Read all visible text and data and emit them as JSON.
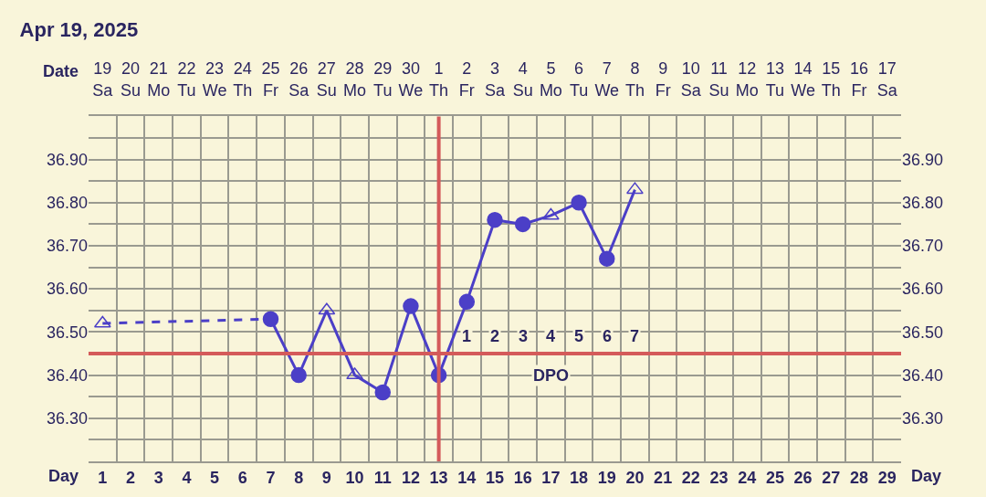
{
  "chart_data": {
    "type": "line",
    "title": "Apr 19, 2025",
    "xlabel": "Day",
    "x2label": "Date",
    "series": [
      {
        "type": "line",
        "color": "#4b3fc7",
        "line_style": "dashed",
        "marker": "none",
        "x": [
          1,
          7
        ],
        "values": [
          36.52,
          36.53
        ]
      },
      {
        "type": "line",
        "color": "#4b3fc7",
        "line_style": "solid",
        "marker": "none",
        "x": [
          7,
          8,
          9,
          10,
          11,
          12,
          13,
          14,
          15,
          16,
          17,
          18,
          19,
          20
        ],
        "values": [
          36.53,
          36.4,
          36.55,
          36.4,
          36.36,
          36.56,
          36.4,
          36.57,
          36.76,
          36.75,
          36.77,
          36.8,
          36.67,
          36.83
        ]
      },
      {
        "type": "scatter",
        "color": "#4b3fc7",
        "marker": "circle",
        "x": [
          7,
          8,
          11,
          12,
          13,
          14,
          15,
          16,
          18,
          19
        ],
        "values": [
          36.53,
          36.4,
          36.36,
          36.56,
          36.4,
          36.57,
          36.76,
          36.75,
          36.8,
          36.67
        ]
      },
      {
        "type": "scatter",
        "color": "#4b3fc7",
        "marker": "triangle",
        "x": [
          1,
          9,
          10,
          17,
          20
        ],
        "values": [
          36.52,
          36.55,
          36.4,
          36.77,
          36.83
        ]
      }
    ],
    "xlim": [
      0.5,
      29.5
    ],
    "xticks": [
      1,
      2,
      3,
      4,
      5,
      6,
      7,
      8,
      9,
      10,
      11,
      12,
      13,
      14,
      15,
      16,
      17,
      18,
      19,
      20,
      21,
      22,
      23,
      24,
      25,
      26,
      27,
      28,
      29
    ],
    "ylim": [
      36.2,
      37.0
    ],
    "y2lim": [
      36.2,
      37.0
    ],
    "yticks": [
      {
        "value": 36.2,
        "label": null
      },
      {
        "value": 36.25,
        "label": null
      },
      {
        "value": 36.3,
        "label": "36.30"
      },
      {
        "value": 36.35,
        "label": null
      },
      {
        "value": 36.4,
        "label": "36.40"
      },
      {
        "value": 36.5,
        "label": "36.50"
      },
      {
        "value": 36.55,
        "label": null
      },
      {
        "value": 36.6,
        "label": "36.60"
      },
      {
        "value": 36.65,
        "label": null
      },
      {
        "value": 36.7,
        "label": "36.70"
      },
      {
        "value": 36.75,
        "label": null
      },
      {
        "value": 36.8,
        "label": "36.80"
      },
      {
        "value": 36.85,
        "label": null
      },
      {
        "value": 36.9,
        "label": "36.90"
      },
      {
        "value": 36.95,
        "label": null
      },
      {
        "value": 37.0,
        "label": null
      }
    ],
    "y2ticks": [
      {
        "value": 36.3,
        "label": "36.30"
      },
      {
        "value": 36.4,
        "label": "36.40"
      },
      {
        "value": 36.5,
        "label": "36.50"
      },
      {
        "value": 36.6,
        "label": "36.60"
      },
      {
        "value": 36.7,
        "label": "36.70"
      },
      {
        "value": 36.8,
        "label": "36.80"
      },
      {
        "value": 36.9,
        "label": "36.90"
      }
    ],
    "x2lim": [
      "2025-04-18T12:00",
      "2025-05-17T12:00"
    ],
    "x2ticks": [
      {
        "value": "2025-04-19",
        "label": "19\nSa"
      },
      {
        "value": "2025-04-20",
        "label": "20\nSu"
      },
      {
        "value": "2025-04-21",
        "label": "21\nMo"
      },
      {
        "value": "2025-04-22",
        "label": "22\nTu"
      },
      {
        "value": "2025-04-23",
        "label": "23\nWe"
      },
      {
        "value": "2025-04-24",
        "label": "24\nTh"
      },
      {
        "value": "2025-04-25",
        "label": "25\nFr"
      },
      {
        "value": "2025-04-26",
        "label": "26\nSa"
      },
      {
        "value": "2025-04-27",
        "label": "27\nSu"
      },
      {
        "value": "2025-04-28",
        "label": "28\nMo"
      },
      {
        "value": "2025-04-29",
        "label": "29\nTu"
      },
      {
        "value": "2025-04-30",
        "label": "30\nWe"
      },
      {
        "value": "2025-05-01",
        "label": "1\nTh"
      },
      {
        "value": "2025-05-02",
        "label": "2\nFr"
      },
      {
        "value": "2025-05-03",
        "label": "3\nSa"
      },
      {
        "value": "2025-05-04",
        "label": "4\nSu"
      },
      {
        "value": "2025-05-05",
        "label": "5\nMo"
      },
      {
        "value": "2025-05-06",
        "label": "6\nTu"
      },
      {
        "value": "2025-05-07",
        "label": "7\nWe"
      },
      {
        "value": "2025-05-08",
        "label": "8\nTh"
      },
      {
        "value": "2025-05-09",
        "label": "9\nFr"
      },
      {
        "value": "2025-05-10",
        "label": "10\nSa"
      },
      {
        "value": "2025-05-11",
        "label": "11\nSu"
      },
      {
        "value": "2025-05-12",
        "label": "12\nMo"
      },
      {
        "value": "2025-05-13",
        "label": "13\nTu"
      },
      {
        "value": "2025-05-14",
        "label": "14\nWe"
      },
      {
        "value": "2025-05-15",
        "label": "15\nTh"
      },
      {
        "value": "2025-05-16",
        "label": "16\nFr"
      },
      {
        "value": "2025-05-17",
        "label": "17\nSa"
      }
    ],
    "ref_lines": [
      {
        "axis": "y",
        "value": 36.45,
        "color": "#d45a5a"
      },
      {
        "axis": "x",
        "value": 13,
        "color": "#d45a5a"
      }
    ],
    "annotations": [
      {
        "text": "1",
        "x": 14,
        "y": 36.49
      },
      {
        "text": "2",
        "x": 15,
        "y": 36.49
      },
      {
        "text": "3",
        "x": 16,
        "y": 36.49
      },
      {
        "text": "4",
        "x": 17,
        "y": 36.49
      },
      {
        "text": "5",
        "x": 18,
        "y": 36.49
      },
      {
        "text": "6",
        "x": 19,
        "y": 36.49
      },
      {
        "text": "7",
        "x": 20,
        "y": 36.49
      },
      {
        "text": "DPO",
        "x": 17,
        "y": 36.4
      }
    ],
    "grid": true
  }
}
